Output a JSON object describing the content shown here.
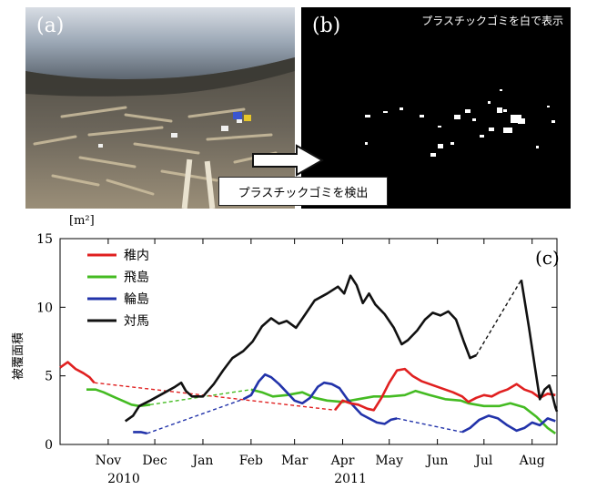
{
  "panels": {
    "a_label": "(a)",
    "b_label": "(b)",
    "b_caption": "プラスチックゴミを白で表示",
    "detect_label": "プラスチックゴミを検出",
    "c_label": "(c)"
  },
  "colors": {
    "wakkanai": "#e02020",
    "tobishima": "#44bb22",
    "wajima": "#2233aa",
    "tsushima": "#111111"
  },
  "chart_data": {
    "type": "line",
    "title": "",
    "ylabel": "被覆面積",
    "yunit": "[m²]",
    "ylim": [
      0,
      15
    ],
    "yticks": [
      0,
      5,
      10,
      15
    ],
    "xlim": [
      "2010-10-15",
      "2011-08-31"
    ],
    "xticks": [
      {
        "label": "Nov",
        "date": "2010-11-15"
      },
      {
        "label": "Dec",
        "date": "2010-12-15"
      },
      {
        "label": "Jan",
        "date": "2011-01-15"
      },
      {
        "label": "Feb",
        "date": "2011-02-15"
      },
      {
        "label": "Mar",
        "date": "2011-03-15"
      },
      {
        "label": "Apr",
        "date": "2011-04-15"
      },
      {
        "label": "May",
        "date": "2011-05-15"
      },
      {
        "label": "Jun",
        "date": "2011-06-15"
      },
      {
        "label": "Jul",
        "date": "2011-07-15"
      },
      {
        "label": "Aug",
        "date": "2011-08-15"
      }
    ],
    "year_labels": [
      {
        "label": "2010",
        "date": "2010-11-25"
      },
      {
        "label": "2011",
        "date": "2011-04-20"
      }
    ],
    "legend_position": "top-left",
    "series": [
      {
        "name": "稚内",
        "color_key": "wakkanai",
        "segments": [
          {
            "style": "solid",
            "points": [
              [
                "2010-10-15",
                5.6
              ],
              [
                "2010-10-20",
                6.0
              ],
              [
                "2010-10-25",
                5.5
              ],
              [
                "2010-10-30",
                5.2
              ],
              [
                "2010-11-03",
                4.9
              ],
              [
                "2010-11-06",
                4.5
              ]
            ]
          },
          {
            "style": "dashed",
            "points": [
              [
                "2010-11-06",
                4.5
              ],
              [
                "2011-04-10",
                2.5
              ]
            ]
          },
          {
            "style": "solid",
            "points": [
              [
                "2011-04-10",
                2.5
              ],
              [
                "2011-04-15",
                3.2
              ],
              [
                "2011-04-20",
                3.0
              ],
              [
                "2011-04-25",
                2.9
              ],
              [
                "2011-05-01",
                2.6
              ],
              [
                "2011-05-05",
                2.5
              ],
              [
                "2011-05-10",
                3.4
              ],
              [
                "2011-05-15",
                4.5
              ],
              [
                "2011-05-20",
                5.4
              ],
              [
                "2011-05-25",
                5.5
              ],
              [
                "2011-05-30",
                5.0
              ],
              [
                "2011-06-05",
                4.6
              ],
              [
                "2011-06-15",
                4.2
              ],
              [
                "2011-06-25",
                3.8
              ],
              [
                "2011-07-01",
                3.5
              ],
              [
                "2011-07-05",
                3.1
              ],
              [
                "2011-07-10",
                3.4
              ],
              [
                "2011-07-15",
                3.6
              ],
              [
                "2011-07-20",
                3.5
              ],
              [
                "2011-07-25",
                3.8
              ],
              [
                "2011-07-30",
                4.0
              ],
              [
                "2011-08-05",
                4.4
              ],
              [
                "2011-08-10",
                4.0
              ],
              [
                "2011-08-15",
                3.8
              ],
              [
                "2011-08-20",
                3.4
              ],
              [
                "2011-08-25",
                3.7
              ],
              [
                "2011-08-30",
                3.6
              ]
            ]
          }
        ]
      },
      {
        "name": "飛島",
        "color_key": "tobishima",
        "segments": [
          {
            "style": "solid",
            "points": [
              [
                "2010-11-01",
                4.0
              ],
              [
                "2010-11-07",
                4.0
              ],
              [
                "2010-11-12",
                3.8
              ],
              [
                "2010-11-18",
                3.5
              ],
              [
                "2010-11-24",
                3.2
              ],
              [
                "2010-11-30",
                2.9
              ],
              [
                "2010-12-05",
                2.8
              ],
              [
                "2010-12-12",
                2.9
              ]
            ]
          },
          {
            "style": "dashed",
            "points": [
              [
                "2010-12-12",
                2.9
              ],
              [
                "2011-02-15",
                4.0
              ]
            ]
          },
          {
            "style": "solid",
            "points": [
              [
                "2011-02-15",
                4.0
              ],
              [
                "2011-02-22",
                3.8
              ],
              [
                "2011-03-01",
                3.5
              ],
              [
                "2011-03-10",
                3.6
              ],
              [
                "2011-03-20",
                3.8
              ],
              [
                "2011-03-28",
                3.4
              ],
              [
                "2011-04-05",
                3.2
              ],
              [
                "2011-04-15",
                3.1
              ],
              [
                "2011-04-25",
                3.3
              ],
              [
                "2011-05-05",
                3.5
              ],
              [
                "2011-05-15",
                3.5
              ],
              [
                "2011-05-25",
                3.6
              ],
              [
                "2011-06-01",
                3.9
              ],
              [
                "2011-06-10",
                3.6
              ],
              [
                "2011-06-20",
                3.3
              ],
              [
                "2011-06-30",
                3.2
              ],
              [
                "2011-07-05",
                3.0
              ],
              [
                "2011-07-15",
                2.8
              ],
              [
                "2011-07-25",
                2.8
              ],
              [
                "2011-08-01",
                3.0
              ],
              [
                "2011-08-10",
                2.7
              ],
              [
                "2011-08-18",
                2.0
              ],
              [
                "2011-08-25",
                1.2
              ],
              [
                "2011-08-30",
                0.8
              ]
            ]
          }
        ]
      },
      {
        "name": "輪島",
        "color_key": "wajima",
        "segments": [
          {
            "style": "solid",
            "points": [
              [
                "2010-12-01",
                0.9
              ],
              [
                "2010-12-06",
                0.9
              ],
              [
                "2010-12-10",
                0.8
              ]
            ]
          },
          {
            "style": "dashed",
            "points": [
              [
                "2010-12-10",
                0.8
              ],
              [
                "2011-02-10",
                3.3
              ]
            ]
          },
          {
            "style": "solid",
            "points": [
              [
                "2011-02-10",
                3.3
              ],
              [
                "2011-02-15",
                3.6
              ],
              [
                "2011-02-20",
                4.6
              ],
              [
                "2011-02-24",
                5.1
              ],
              [
                "2011-02-28",
                4.9
              ],
              [
                "2011-03-05",
                4.4
              ],
              [
                "2011-03-10",
                3.8
              ],
              [
                "2011-03-15",
                3.2
              ],
              [
                "2011-03-20",
                3.0
              ],
              [
                "2011-03-25",
                3.4
              ],
              [
                "2011-03-30",
                4.2
              ],
              [
                "2011-04-03",
                4.5
              ],
              [
                "2011-04-08",
                4.4
              ],
              [
                "2011-04-13",
                4.1
              ],
              [
                "2011-04-18",
                3.3
              ],
              [
                "2011-04-22",
                2.8
              ],
              [
                "2011-04-27",
                2.2
              ],
              [
                "2011-05-02",
                1.9
              ],
              [
                "2011-05-07",
                1.6
              ],
              [
                "2011-05-12",
                1.5
              ],
              [
                "2011-05-16",
                1.8
              ],
              [
                "2011-05-20",
                1.9
              ]
            ]
          },
          {
            "style": "dashed",
            "points": [
              [
                "2011-05-20",
                1.9
              ],
              [
                "2011-07-01",
                0.9
              ]
            ]
          },
          {
            "style": "solid",
            "points": [
              [
                "2011-07-01",
                0.9
              ],
              [
                "2011-07-06",
                1.2
              ],
              [
                "2011-07-12",
                1.8
              ],
              [
                "2011-07-18",
                2.1
              ],
              [
                "2011-07-24",
                1.9
              ],
              [
                "2011-07-30",
                1.4
              ],
              [
                "2011-08-05",
                1.0
              ],
              [
                "2011-08-10",
                1.2
              ],
              [
                "2011-08-15",
                1.6
              ],
              [
                "2011-08-20",
                1.4
              ],
              [
                "2011-08-25",
                1.9
              ],
              [
                "2011-08-30",
                1.7
              ]
            ]
          }
        ]
      },
      {
        "name": "対馬",
        "color_key": "tsushima",
        "segments": [
          {
            "style": "solid",
            "points": [
              [
                "2010-11-26",
                1.7
              ],
              [
                "2010-12-01",
                2.1
              ],
              [
                "2010-12-05",
                2.8
              ],
              [
                "2010-12-12",
                3.2
              ],
              [
                "2010-12-20",
                3.7
              ],
              [
                "2010-12-28",
                4.2
              ],
              [
                "2011-01-01",
                4.5
              ],
              [
                "2011-01-04",
                3.9
              ],
              [
                "2011-01-08",
                3.5
              ],
              [
                "2011-01-15",
                3.5
              ],
              [
                "2011-01-22",
                4.4
              ],
              [
                "2011-01-28",
                5.4
              ],
              [
                "2011-02-03",
                6.3
              ],
              [
                "2011-02-10",
                6.8
              ],
              [
                "2011-02-16",
                7.5
              ],
              [
                "2011-02-22",
                8.6
              ],
              [
                "2011-02-28",
                9.2
              ],
              [
                "2011-03-05",
                8.8
              ],
              [
                "2011-03-10",
                9.0
              ],
              [
                "2011-03-16",
                8.5
              ],
              [
                "2011-03-22",
                9.5
              ],
              [
                "2011-03-28",
                10.5
              ],
              [
                "2011-04-05",
                11.0
              ],
              [
                "2011-04-12",
                11.5
              ],
              [
                "2011-04-16",
                11.0
              ],
              [
                "2011-04-20",
                12.3
              ],
              [
                "2011-04-24",
                11.6
              ],
              [
                "2011-04-28",
                10.3
              ],
              [
                "2011-05-02",
                11.0
              ],
              [
                "2011-05-06",
                10.2
              ],
              [
                "2011-05-12",
                9.5
              ],
              [
                "2011-05-18",
                8.5
              ],
              [
                "2011-05-23",
                7.3
              ],
              [
                "2011-05-27",
                7.6
              ],
              [
                "2011-06-02",
                8.3
              ],
              [
                "2011-06-07",
                9.1
              ],
              [
                "2011-06-12",
                9.6
              ],
              [
                "2011-06-17",
                9.4
              ],
              [
                "2011-06-22",
                9.7
              ],
              [
                "2011-06-27",
                9.1
              ],
              [
                "2011-07-02",
                7.5
              ],
              [
                "2011-07-06",
                6.3
              ],
              [
                "2011-07-10",
                6.5
              ]
            ]
          },
          {
            "style": "dashed",
            "points": [
              [
                "2011-07-10",
                6.5
              ],
              [
                "2011-08-08",
                12.0
              ]
            ]
          },
          {
            "style": "solid",
            "points": [
              [
                "2011-08-08",
                12.0
              ],
              [
                "2011-08-13",
                8.5
              ],
              [
                "2011-08-17",
                5.5
              ],
              [
                "2011-08-20",
                3.3
              ],
              [
                "2011-08-23",
                4.0
              ],
              [
                "2011-08-26",
                4.3
              ],
              [
                "2011-08-28",
                3.6
              ],
              [
                "2011-08-30",
                2.7
              ],
              [
                "2011-08-31",
                2.4
              ]
            ]
          }
        ]
      }
    ]
  }
}
